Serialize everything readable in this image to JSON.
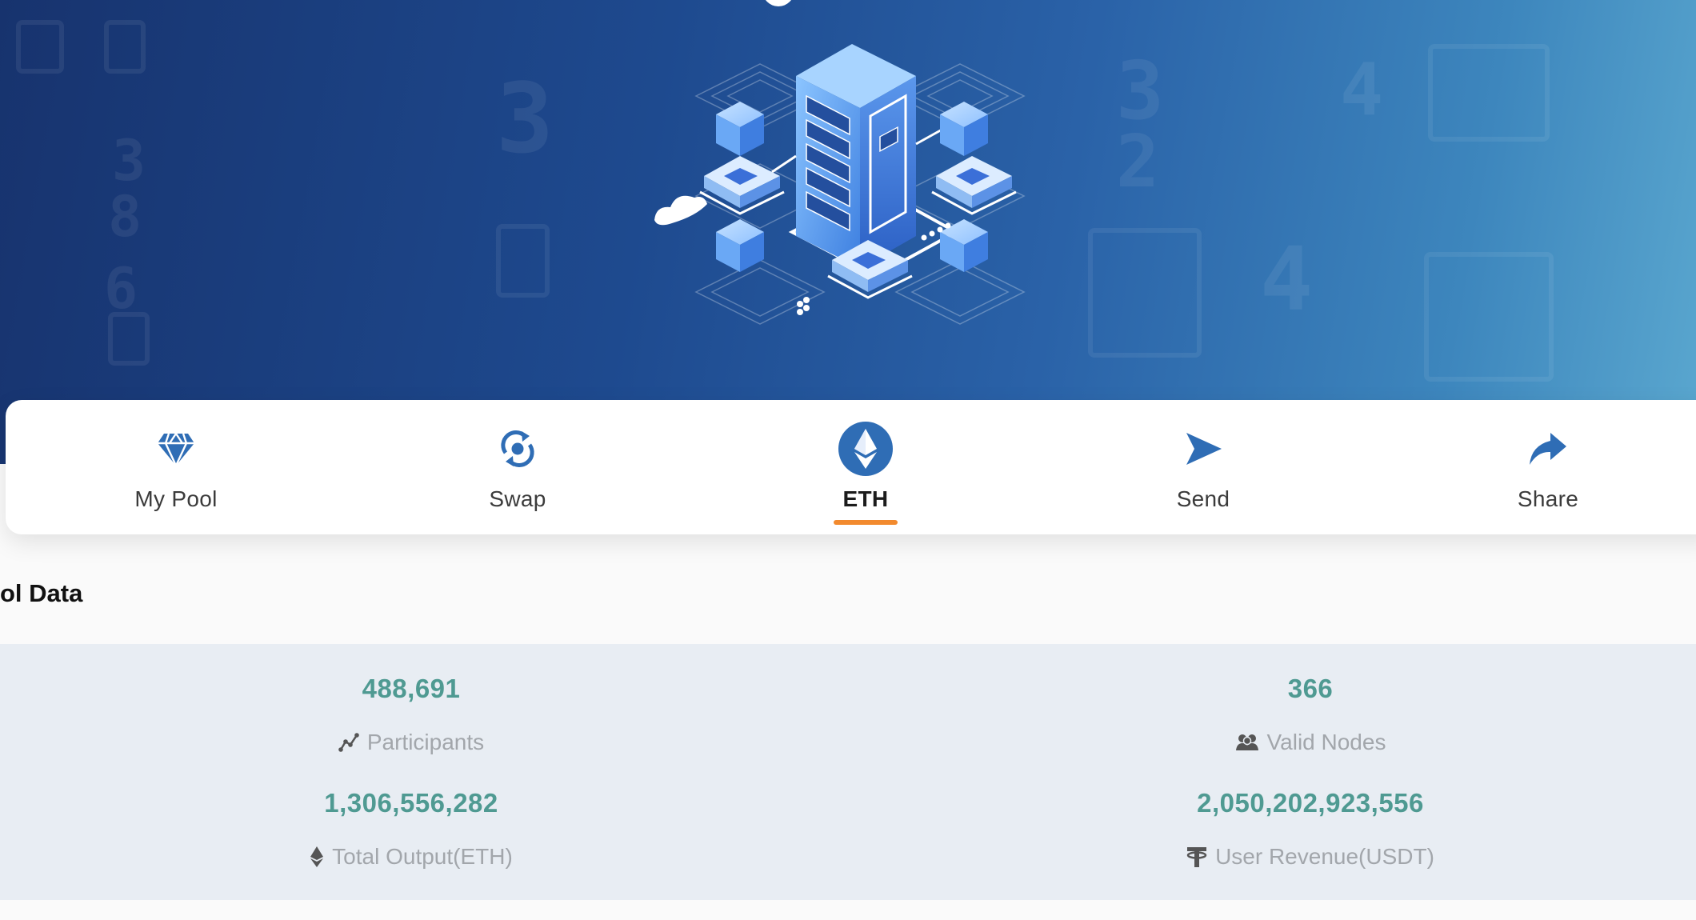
{
  "nav": {
    "items": [
      {
        "label": "My Pool",
        "icon": "diamond-icon"
      },
      {
        "label": "Swap",
        "icon": "swap-cycle-icon"
      },
      {
        "label": "ETH",
        "icon": "ethereum-icon"
      },
      {
        "label": "Send",
        "icon": "send-arrow-icon"
      },
      {
        "label": "Share",
        "icon": "share-arrow-icon"
      }
    ],
    "active": "ETH"
  },
  "section": {
    "title": "ol Data"
  },
  "stats": {
    "participants": {
      "value": "488,691",
      "label": "Participants",
      "icon": "chart-line-icon"
    },
    "valid_nodes": {
      "value": "366",
      "label": "Valid Nodes",
      "icon": "users-icon"
    },
    "total_output": {
      "value": "1,306,556,282",
      "label": "Total Output(ETH)",
      "icon": "ethereum-small-icon"
    },
    "user_revenue": {
      "value": "2,050,202,923,556",
      "label": "User Revenue(USDT)",
      "icon": "tether-icon"
    }
  },
  "colors": {
    "accent_blue": "#2f6db5",
    "active_underline": "#f28a2e",
    "stat_value": "#4f9a92",
    "stat_label": "#a2a6ab",
    "stats_bg": "#e8edf3"
  }
}
